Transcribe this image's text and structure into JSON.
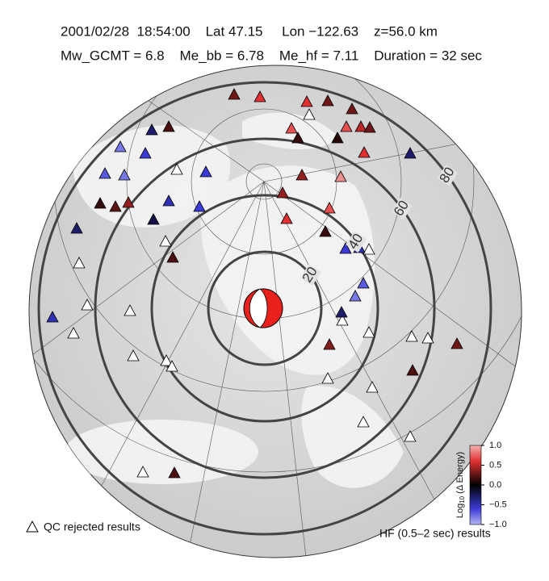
{
  "header": {
    "line1": "2001/02/28  18:54:00    Lat 47.15     Lon −122.63    z=56.0 km",
    "line2": "Mw_GCMT = 6.8    Me_bb = 6.78    Me_hf = 7.11    Duration = 32 sec"
  },
  "distance_rings": [
    20,
    40,
    60,
    80
  ],
  "stations": {
    "values": [
      0.3,
      0.6,
      0.6,
      0.3,
      0.3,
      -0.3,
      0.2,
      -0.8,
      -0.6,
      -0.7,
      -0.8,
      -0.6,
      0.7,
      0.7,
      0.5,
      0.3,
      0.1,
      0.15,
      0.6,
      -0.3,
      0.4,
      0.9,
      0.15,
      0.25,
      0.4,
      -0.5,
      -0.6,
      0.4,
      -0.2,
      0.6,
      0.7,
      -0.3,
      0.15,
      0.2,
      -0.6,
      -0.5,
      -0.7,
      -0.8,
      -0.3,
      -0.5,
      0.35,
      0.3,
      0.2,
      0.2
    ]
  },
  "colorbar": {
    "label_prefix": "Log",
    "label_sub": "10",
    "label_suffix": " (Δ Energy)",
    "lim": [
      -1,
      1
    ],
    "ticks": [
      {
        "value": 1,
        "label": "1.0"
      },
      {
        "value": 0.5,
        "label": "0.5"
      },
      {
        "value": 0,
        "label": "0.0"
      },
      {
        "value": -0.5,
        "label": "−0.5"
      },
      {
        "value": -1,
        "label": "−1.0"
      }
    ]
  },
  "legend": {
    "rejected": "QC rejected results",
    "hf": "HF (0.5–2 sec) results"
  }
}
